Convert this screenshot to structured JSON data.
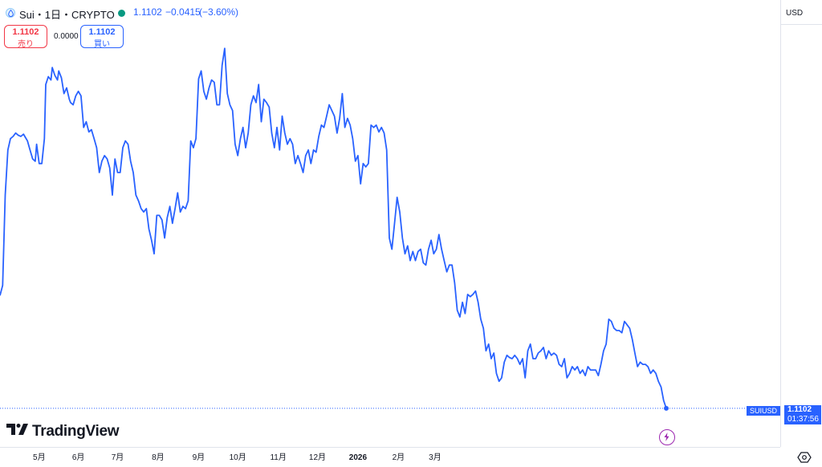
{
  "header": {
    "symbol_title": "Sui・1日・CRYPTO",
    "price": "1.1102",
    "change": "−0.0415",
    "change_pct": "(−3.60%)",
    "status_color": "#089981"
  },
  "trade": {
    "sell_price": "1.1102",
    "sell_label": "売り",
    "spread": "0.0000",
    "buy_price": "1.1102",
    "buy_label": "買い"
  },
  "scale": {
    "currency": "USD",
    "settings_icon": "gear-icon"
  },
  "branding": {
    "logo_text": "TradingView"
  },
  "last_price": {
    "symbol_label": "SUIUSD",
    "value": "1.1102",
    "countdown": "01:37:56",
    "color": "#2962ff"
  },
  "chart_data": {
    "type": "line",
    "title": "",
    "xlabel": "",
    "ylabel": "",
    "line_color": "#2962ff",
    "grid": false,
    "ylim": [
      0.8,
      4.5
    ],
    "y_ticks": [
      "4.4000",
      "4.2000",
      "4.0000",
      "3.8000",
      "3.6000",
      "3.4000",
      "3.2000",
      "3.0000",
      "2.8000",
      "2.6000",
      "2.4000",
      "2.2000",
      "2.0000",
      "1.8000",
      "1.6000",
      "1.4000",
      "1.2000",
      "0.8000"
    ],
    "x_ticks": [
      "5月",
      "6月",
      "7月",
      "8月",
      "9月",
      "10月",
      "11月",
      "12月",
      "2026",
      "2月",
      "3月"
    ],
    "x_tick_days": [
      33,
      63,
      93,
      124,
      155,
      185,
      216,
      246,
      277,
      308,
      336
    ],
    "series": [
      {
        "values": [
          [
            3,
            2.11
          ],
          [
            5,
            2.2
          ],
          [
            7,
            3.0
          ],
          [
            9,
            3.4
          ],
          [
            11,
            3.5
          ],
          [
            13,
            3.52
          ],
          [
            15,
            3.55
          ],
          [
            17,
            3.53
          ],
          [
            19,
            3.52
          ],
          [
            21,
            3.54
          ],
          [
            22,
            3.52
          ],
          [
            24,
            3.48
          ],
          [
            26,
            3.4
          ],
          [
            28,
            3.32
          ],
          [
            30,
            3.3
          ],
          [
            31,
            3.45
          ],
          [
            33,
            3.28
          ],
          [
            35,
            3.28
          ],
          [
            37,
            3.5
          ],
          [
            38,
            3.98
          ],
          [
            40,
            4.05
          ],
          [
            42,
            4.02
          ],
          [
            43,
            4.13
          ],
          [
            45,
            4.06
          ],
          [
            47,
            4.02
          ],
          [
            48,
            4.1
          ],
          [
            50,
            4.04
          ],
          [
            52,
            3.9
          ],
          [
            54,
            3.95
          ],
          [
            56,
            3.85
          ],
          [
            57,
            3.82
          ],
          [
            59,
            3.8
          ],
          [
            61,
            3.88
          ],
          [
            63,
            3.92
          ],
          [
            65,
            3.88
          ],
          [
            67,
            3.6
          ],
          [
            69,
            3.65
          ],
          [
            71,
            3.56
          ],
          [
            73,
            3.58
          ],
          [
            75,
            3.5
          ],
          [
            77,
            3.42
          ],
          [
            79,
            3.2
          ],
          [
            81,
            3.3
          ],
          [
            83,
            3.35
          ],
          [
            85,
            3.32
          ],
          [
            87,
            3.24
          ],
          [
            89,
            3.0
          ],
          [
            91,
            3.32
          ],
          [
            93,
            3.2
          ],
          [
            95,
            3.2
          ],
          [
            97,
            3.42
          ],
          [
            99,
            3.48
          ],
          [
            101,
            3.45
          ],
          [
            103,
            3.3
          ],
          [
            105,
            3.2
          ],
          [
            107,
            3.0
          ],
          [
            109,
            2.95
          ],
          [
            111,
            2.88
          ],
          [
            113,
            2.85
          ],
          [
            115,
            2.88
          ],
          [
            117,
            2.7
          ],
          [
            119,
            2.6
          ],
          [
            121,
            2.48
          ],
          [
            123,
            2.82
          ],
          [
            125,
            2.82
          ],
          [
            127,
            2.78
          ],
          [
            129,
            2.62
          ],
          [
            131,
            2.8
          ],
          [
            133,
            2.9
          ],
          [
            135,
            2.75
          ],
          [
            137,
            2.88
          ],
          [
            139,
            3.02
          ],
          [
            141,
            2.85
          ],
          [
            143,
            2.9
          ],
          [
            145,
            2.88
          ],
          [
            147,
            2.95
          ],
          [
            149,
            3.48
          ],
          [
            151,
            3.42
          ],
          [
            153,
            3.5
          ],
          [
            155,
            4.03
          ],
          [
            157,
            4.1
          ],
          [
            159,
            3.92
          ],
          [
            161,
            3.85
          ],
          [
            163,
            3.95
          ],
          [
            165,
            4.02
          ],
          [
            167,
            4.0
          ],
          [
            169,
            3.8
          ],
          [
            171,
            3.8
          ],
          [
            173,
            4.15
          ],
          [
            175,
            4.3
          ],
          [
            177,
            3.9
          ],
          [
            179,
            3.8
          ],
          [
            181,
            3.75
          ],
          [
            183,
            3.45
          ],
          [
            185,
            3.35
          ],
          [
            187,
            3.5
          ],
          [
            189,
            3.6
          ],
          [
            191,
            3.42
          ],
          [
            193,
            3.55
          ],
          [
            195,
            3.8
          ],
          [
            197,
            3.88
          ],
          [
            199,
            3.82
          ],
          [
            201,
            3.98
          ],
          [
            203,
            3.65
          ],
          [
            205,
            3.85
          ],
          [
            207,
            3.82
          ],
          [
            209,
            3.78
          ],
          [
            211,
            3.55
          ],
          [
            213,
            3.42
          ],
          [
            215,
            3.6
          ],
          [
            217,
            3.4
          ],
          [
            219,
            3.7
          ],
          [
            221,
            3.55
          ],
          [
            223,
            3.45
          ],
          [
            225,
            3.5
          ],
          [
            227,
            3.45
          ],
          [
            229,
            3.28
          ],
          [
            231,
            3.35
          ],
          [
            233,
            3.28
          ],
          [
            235,
            3.2
          ],
          [
            237,
            3.35
          ],
          [
            239,
            3.4
          ],
          [
            241,
            3.28
          ],
          [
            243,
            3.4
          ],
          [
            245,
            3.38
          ],
          [
            247,
            3.52
          ],
          [
            249,
            3.62
          ],
          [
            251,
            3.6
          ],
          [
            253,
            3.7
          ],
          [
            255,
            3.8
          ],
          [
            257,
            3.75
          ],
          [
            259,
            3.7
          ],
          [
            261,
            3.55
          ],
          [
            263,
            3.68
          ],
          [
            265,
            3.9
          ],
          [
            267,
            3.6
          ],
          [
            269,
            3.68
          ],
          [
            271,
            3.62
          ],
          [
            273,
            3.5
          ],
          [
            275,
            3.3
          ],
          [
            277,
            3.35
          ],
          [
            279,
            3.1
          ],
          [
            281,
            3.28
          ],
          [
            283,
            3.25
          ],
          [
            285,
            3.28
          ],
          [
            287,
            3.62
          ],
          [
            289,
            3.6
          ],
          [
            291,
            3.62
          ],
          [
            293,
            3.56
          ],
          [
            295,
            3.6
          ],
          [
            297,
            3.55
          ],
          [
            299,
            3.4
          ],
          [
            301,
            2.62
          ],
          [
            303,
            2.52
          ],
          [
            305,
            2.75
          ],
          [
            307,
            2.98
          ],
          [
            309,
            2.85
          ],
          [
            311,
            2.62
          ],
          [
            313,
            2.48
          ],
          [
            315,
            2.55
          ],
          [
            317,
            2.42
          ],
          [
            319,
            2.5
          ],
          [
            321,
            2.42
          ],
          [
            323,
            2.5
          ],
          [
            325,
            2.52
          ],
          [
            327,
            2.4
          ],
          [
            329,
            2.38
          ],
          [
            331,
            2.52
          ],
          [
            333,
            2.6
          ],
          [
            335,
            2.48
          ],
          [
            337,
            2.52
          ],
          [
            339,
            2.65
          ],
          [
            341,
            2.52
          ],
          [
            343,
            2.42
          ],
          [
            345,
            2.32
          ],
          [
            347,
            2.38
          ],
          [
            349,
            2.38
          ],
          [
            351,
            2.22
          ],
          [
            353,
            1.98
          ],
          [
            355,
            1.92
          ],
          [
            357,
            2.05
          ],
          [
            359,
            1.95
          ],
          [
            361,
            2.12
          ],
          [
            363,
            2.1
          ],
          [
            365,
            2.12
          ],
          [
            367,
            2.15
          ],
          [
            369,
            2.05
          ],
          [
            371,
            1.9
          ],
          [
            373,
            1.82
          ],
          [
            375,
            1.62
          ],
          [
            377,
            1.68
          ],
          [
            379,
            1.55
          ],
          [
            381,
            1.6
          ],
          [
            383,
            1.42
          ],
          [
            385,
            1.35
          ],
          [
            387,
            1.38
          ],
          [
            389,
            1.52
          ],
          [
            391,
            1.58
          ],
          [
            393,
            1.56
          ],
          [
            395,
            1.55
          ],
          [
            397,
            1.58
          ],
          [
            399,
            1.55
          ],
          [
            401,
            1.5
          ],
          [
            403,
            1.55
          ],
          [
            405,
            1.38
          ],
          [
            407,
            1.62
          ],
          [
            409,
            1.68
          ],
          [
            411,
            1.55
          ],
          [
            413,
            1.55
          ],
          [
            415,
            1.6
          ],
          [
            417,
            1.62
          ],
          [
            419,
            1.65
          ],
          [
            421,
            1.55
          ],
          [
            423,
            1.62
          ],
          [
            425,
            1.58
          ],
          [
            427,
            1.6
          ],
          [
            429,
            1.58
          ],
          [
            431,
            1.5
          ],
          [
            433,
            1.48
          ],
          [
            435,
            1.55
          ],
          [
            437,
            1.38
          ],
          [
            439,
            1.42
          ],
          [
            441,
            1.48
          ],
          [
            443,
            1.45
          ],
          [
            445,
            1.48
          ],
          [
            447,
            1.42
          ],
          [
            449,
            1.45
          ],
          [
            451,
            1.4
          ],
          [
            453,
            1.48
          ],
          [
            455,
            1.45
          ],
          [
            457,
            1.45
          ],
          [
            459,
            1.45
          ],
          [
            461,
            1.4
          ],
          [
            463,
            1.5
          ],
          [
            465,
            1.62
          ],
          [
            467,
            1.68
          ],
          [
            469,
            1.9
          ],
          [
            471,
            1.88
          ],
          [
            473,
            1.82
          ],
          [
            475,
            1.8
          ],
          [
            477,
            1.8
          ],
          [
            479,
            1.78
          ],
          [
            481,
            1.88
          ],
          [
            483,
            1.85
          ],
          [
            485,
            1.82
          ],
          [
            487,
            1.72
          ],
          [
            489,
            1.6
          ],
          [
            491,
            1.48
          ],
          [
            493,
            1.52
          ],
          [
            495,
            1.5
          ],
          [
            497,
            1.5
          ],
          [
            499,
            1.48
          ],
          [
            501,
            1.42
          ],
          [
            503,
            1.45
          ],
          [
            505,
            1.42
          ],
          [
            507,
            1.35
          ],
          [
            509,
            1.3
          ],
          [
            511,
            1.18
          ],
          [
            513,
            1.1102
          ]
        ]
      }
    ]
  }
}
